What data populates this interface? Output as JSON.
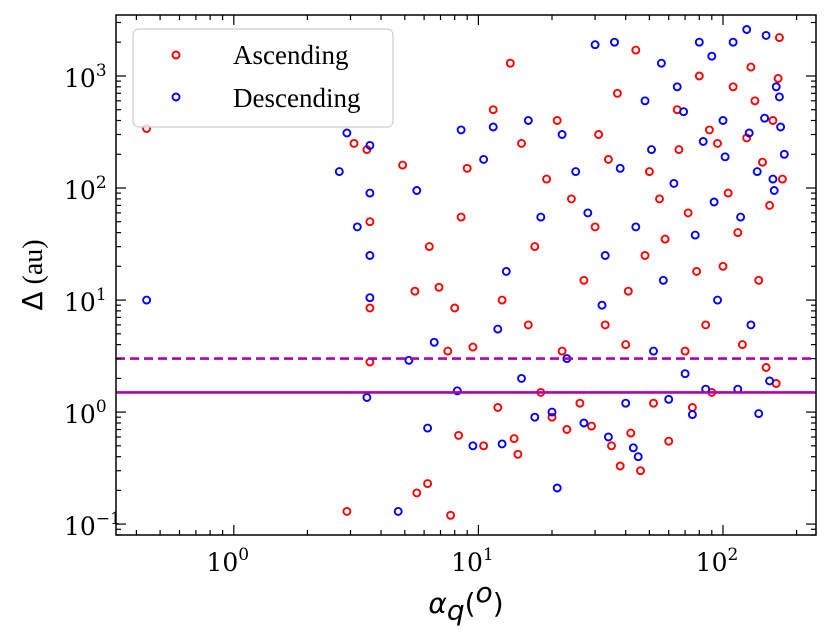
{
  "chart_data": {
    "type": "scatter",
    "title": "",
    "xlabel": {
      "symbol": "α",
      "subscript": "q",
      "unit_open": "(",
      "unit": "o",
      "unit_close": ")"
    },
    "ylabel": {
      "symbol": "Δ",
      "unit": " (au)"
    },
    "xscale": "log",
    "yscale": "log",
    "xlim": [
      0.33,
      240
    ],
    "ylim": [
      0.08,
      3500
    ],
    "xticks": [
      {
        "value": 1,
        "base": "10",
        "exp": "0"
      },
      {
        "value": 10,
        "base": "10",
        "exp": "1"
      },
      {
        "value": 100,
        "base": "10",
        "exp": "2"
      }
    ],
    "yticks": [
      {
        "value": 0.1,
        "base": "10",
        "exp": "−1"
      },
      {
        "value": 1,
        "base": "10",
        "exp": "0"
      },
      {
        "value": 10,
        "base": "10",
        "exp": "1"
      },
      {
        "value": 100,
        "base": "10",
        "exp": "2"
      },
      {
        "value": 1000,
        "base": "10",
        "exp": "3"
      }
    ],
    "hlines": [
      {
        "name": "dashed-threshold",
        "y": 3.0,
        "color": "#b000b0",
        "style": "dashed"
      },
      {
        "name": "solid-threshold",
        "y": 1.5,
        "color": "#b000b0",
        "style": "solid"
      }
    ],
    "legend": {
      "position": "top-left"
    },
    "colors": {
      "ascending": "#ff0000",
      "descending": "#0000ff"
    },
    "series": [
      {
        "name": "Ascending",
        "marker": "open-circle",
        "color": "#ff0000",
        "points": [
          [
            0.44,
            340
          ],
          [
            2.9,
            0.13
          ],
          [
            3.1,
            250
          ],
          [
            3.5,
            220
          ],
          [
            3.6,
            50
          ],
          [
            3.6,
            8.5
          ],
          [
            3.6,
            2.8
          ],
          [
            4.9,
            160
          ],
          [
            5.5,
            12
          ],
          [
            5.6,
            0.19
          ],
          [
            6.2,
            0.23
          ],
          [
            6.3,
            30
          ],
          [
            6.9,
            13
          ],
          [
            7.5,
            3.5
          ],
          [
            7.7,
            0.12
          ],
          [
            8.0,
            8.5
          ],
          [
            8.3,
            0.62
          ],
          [
            8.5,
            55
          ],
          [
            9.0,
            150
          ],
          [
            9.5,
            3.8
          ],
          [
            10.5,
            0.5
          ],
          [
            11.5,
            500
          ],
          [
            12.0,
            1.1
          ],
          [
            12.5,
            10
          ],
          [
            13.5,
            1300
          ],
          [
            14.0,
            0.58
          ],
          [
            14.5,
            0.42
          ],
          [
            15.0,
            250
          ],
          [
            16.0,
            6.0
          ],
          [
            17.0,
            30
          ],
          [
            18.0,
            1.5
          ],
          [
            19.0,
            120
          ],
          [
            20.0,
            0.9
          ],
          [
            21.0,
            400
          ],
          [
            22.0,
            3.5
          ],
          [
            23.0,
            0.7
          ],
          [
            24.0,
            80
          ],
          [
            26.0,
            1.2
          ],
          [
            27.0,
            15
          ],
          [
            29.0,
            0.75
          ],
          [
            31.0,
            300
          ],
          [
            33.0,
            6.0
          ],
          [
            35.0,
            0.5
          ],
          [
            37.0,
            700
          ],
          [
            38.0,
            0.33
          ],
          [
            40.0,
            4.0
          ],
          [
            42.0,
            0.65
          ],
          [
            44.0,
            1700
          ],
          [
            46.0,
            0.3
          ],
          [
            48.0,
            25
          ],
          [
            52.0,
            1.2
          ],
          [
            55.0,
            80
          ],
          [
            60.0,
            0.55
          ],
          [
            65.0,
            500
          ],
          [
            70.0,
            3.5
          ],
          [
            75.0,
            1.1
          ],
          [
            80.0,
            1000
          ],
          [
            85.0,
            6.0
          ],
          [
            90.0,
            1.5
          ],
          [
            95.0,
            250
          ],
          [
            100.0,
            20
          ],
          [
            110.0,
            800
          ],
          [
            120.0,
            4.0
          ],
          [
            130.0,
            1200
          ],
          [
            140.0,
            15
          ],
          [
            150.0,
            2.5
          ],
          [
            160.0,
            400
          ],
          [
            165.0,
            1.8
          ],
          [
            170.0,
            2200
          ],
          [
            175.0,
            120
          ],
          [
            30.0,
            45
          ],
          [
            34.0,
            180
          ],
          [
            41.0,
            12
          ],
          [
            50.0,
            140
          ],
          [
            58.0,
            35
          ],
          [
            66.0,
            220
          ],
          [
            72.0,
            60
          ],
          [
            78.0,
            18
          ],
          [
            88.0,
            330
          ],
          [
            105.0,
            90
          ],
          [
            115.0,
            40
          ],
          [
            125.0,
            280
          ],
          [
            135.0,
            600
          ],
          [
            145.0,
            170
          ],
          [
            155.0,
            70
          ],
          [
            168.0,
            950
          ]
        ]
      },
      {
        "name": "Descending",
        "marker": "open-circle",
        "color": "#0000ff",
        "points": [
          [
            0.44,
            10
          ],
          [
            2.7,
            140
          ],
          [
            2.9,
            310
          ],
          [
            3.2,
            45
          ],
          [
            3.5,
            1.35
          ],
          [
            3.6,
            240
          ],
          [
            3.6,
            90
          ],
          [
            3.6,
            25
          ],
          [
            3.6,
            10.5
          ],
          [
            4.7,
            0.13
          ],
          [
            5.2,
            2.9
          ],
          [
            5.6,
            95
          ],
          [
            6.2,
            0.72
          ],
          [
            6.6,
            4.2
          ],
          [
            8.2,
            1.55
          ],
          [
            8.5,
            330
          ],
          [
            9.5,
            0.5
          ],
          [
            10.5,
            180
          ],
          [
            11.5,
            350
          ],
          [
            12.0,
            5.5
          ],
          [
            12.5,
            0.52
          ],
          [
            13.0,
            18
          ],
          [
            15.0,
            2.0
          ],
          [
            16.0,
            400
          ],
          [
            17.0,
            0.9
          ],
          [
            18.0,
            55
          ],
          [
            20.0,
            1.0
          ],
          [
            21.0,
            0.21
          ],
          [
            22.0,
            300
          ],
          [
            23.0,
            3.0
          ],
          [
            25.0,
            140
          ],
          [
            27.0,
            0.8
          ],
          [
            30.0,
            1900
          ],
          [
            32.0,
            9.0
          ],
          [
            34.0,
            0.6
          ],
          [
            36.0,
            2000
          ],
          [
            40.0,
            1.2
          ],
          [
            43.0,
            0.48
          ],
          [
            45.0,
            0.4
          ],
          [
            48.0,
            600
          ],
          [
            52.0,
            3.5
          ],
          [
            56.0,
            1300
          ],
          [
            60.0,
            1.3
          ],
          [
            65.0,
            800
          ],
          [
            70.0,
            2.2
          ],
          [
            75.0,
            0.95
          ],
          [
            80.0,
            2000
          ],
          [
            85.0,
            1.6
          ],
          [
            90.0,
            1500
          ],
          [
            95.0,
            10
          ],
          [
            100.0,
            400
          ],
          [
            110.0,
            2000
          ],
          [
            115.0,
            1.6
          ],
          [
            125.0,
            2600
          ],
          [
            130.0,
            6.0
          ],
          [
            140.0,
            0.97
          ],
          [
            150.0,
            2300
          ],
          [
            155.0,
            1.9
          ],
          [
            160.0,
            120
          ],
          [
            165.0,
            800
          ],
          [
            172.0,
            350
          ],
          [
            178.0,
            200
          ],
          [
            28.0,
            60
          ],
          [
            33.0,
            25
          ],
          [
            38.0,
            150
          ],
          [
            44.0,
            45
          ],
          [
            51.0,
            220
          ],
          [
            57.0,
            15
          ],
          [
            63.0,
            110
          ],
          [
            69.0,
            480
          ],
          [
            77.0,
            38
          ],
          [
            83.0,
            260
          ],
          [
            92.0,
            75
          ],
          [
            102.0,
            190
          ],
          [
            118.0,
            55
          ],
          [
            128.0,
            310
          ],
          [
            138.0,
            140
          ],
          [
            148.0,
            420
          ],
          [
            162.0,
            95
          ],
          [
            170.0,
            650
          ]
        ]
      }
    ]
  }
}
